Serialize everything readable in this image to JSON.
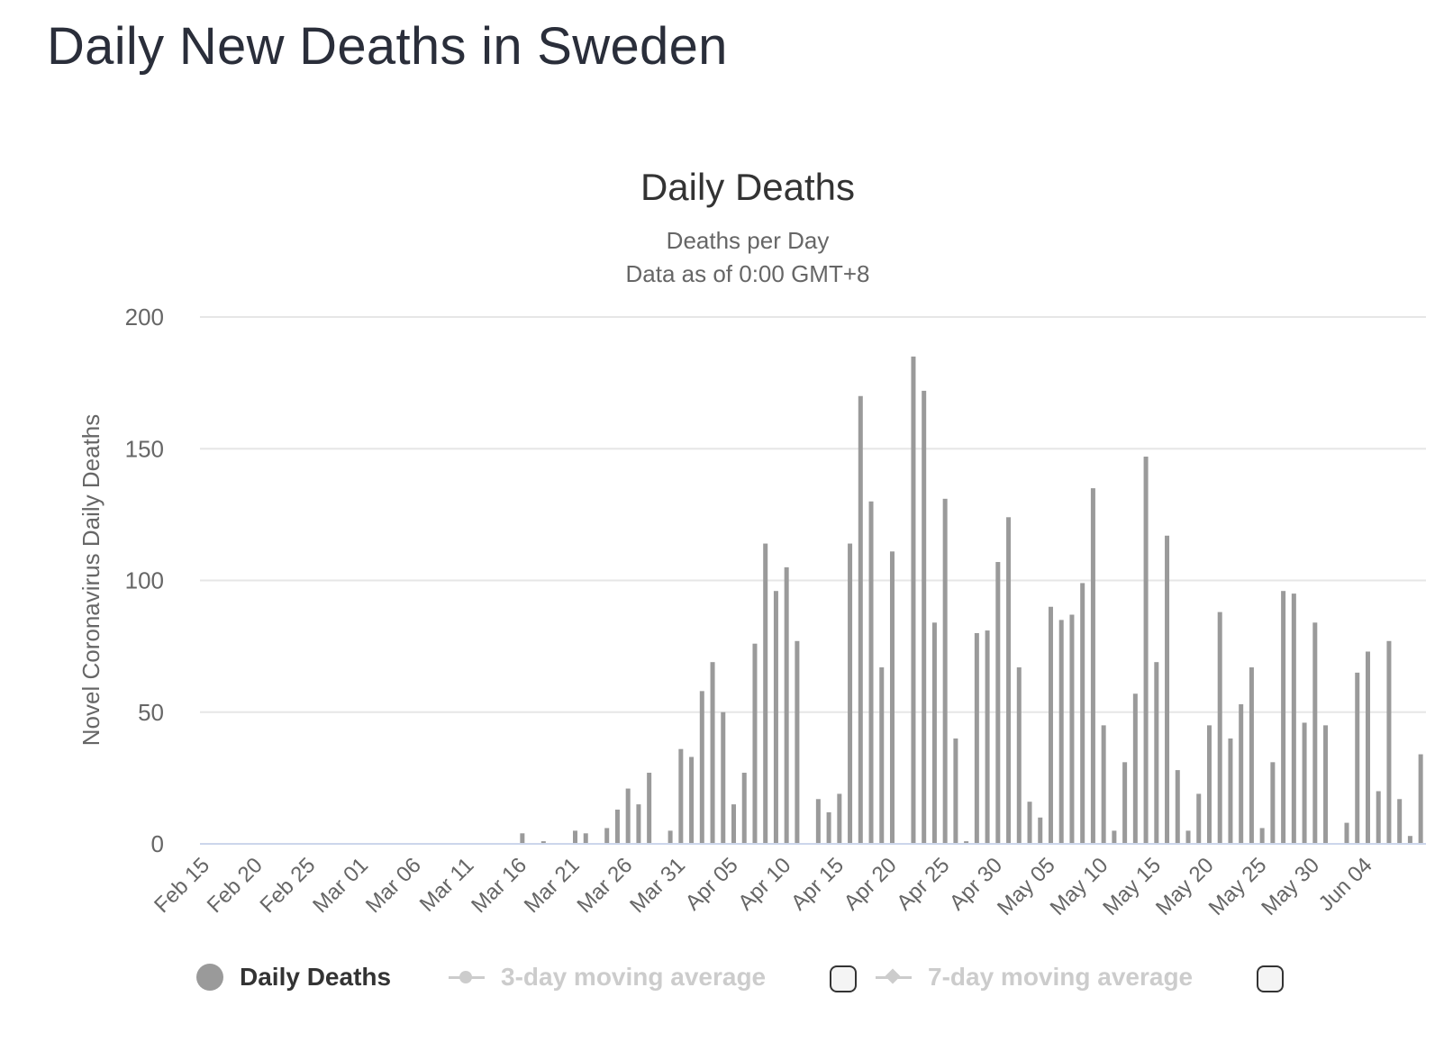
{
  "page": {
    "title": "Daily New Deaths in Sweden"
  },
  "legend": {
    "daily_label": "Daily Deaths",
    "avg3_label": "3-day moving average",
    "avg7_label": "7-day moving average"
  },
  "colors": {
    "bar": "#9a9a9a",
    "grid": "#e6e6e6",
    "baseline": "#ccd6eb",
    "inactive": "#cccccc"
  },
  "chart_data": {
    "type": "bar",
    "title": "Daily Deaths",
    "subtitle_lines": [
      "Deaths per Day",
      "Data as of 0:00 GMT+8"
    ],
    "ylabel": "Novel Coronavirus Daily Deaths",
    "xlabel": "",
    "ylim": [
      0,
      200
    ],
    "yticks": [
      0,
      50,
      100,
      150,
      200
    ],
    "grid": true,
    "legend_position": "bottom",
    "tick_labels": [
      "Feb 15",
      "Feb 20",
      "Feb 25",
      "Mar 01",
      "Mar 06",
      "Mar 11",
      "Mar 16",
      "Mar 21",
      "Mar 26",
      "Mar 31",
      "Apr 05",
      "Apr 10",
      "Apr 15",
      "Apr 20",
      "Apr 25",
      "Apr 30",
      "May 05",
      "May 10",
      "May 15",
      "May 20",
      "May 25",
      "May 30",
      "Jun 04"
    ],
    "start_date": "Feb 15",
    "series": [
      {
        "name": "Daily Deaths",
        "values": [
          0,
          0,
          0,
          0,
          0,
          0,
          0,
          0,
          0,
          0,
          0,
          0,
          0,
          0,
          0,
          0,
          0,
          0,
          0,
          0,
          0,
          0,
          0,
          0,
          0,
          0,
          0,
          0,
          0,
          0,
          4,
          0,
          1,
          0,
          0,
          5,
          4,
          0,
          6,
          13,
          21,
          15,
          27,
          0,
          5,
          36,
          33,
          58,
          69,
          50,
          15,
          27,
          76,
          114,
          96,
          105,
          77,
          0,
          17,
          12,
          19,
          114,
          170,
          130,
          67,
          111,
          0,
          185,
          172,
          84,
          131,
          40,
          1,
          80,
          81,
          107,
          124,
          67,
          16,
          10,
          90,
          85,
          87,
          99,
          135,
          45,
          5,
          31,
          57,
          147,
          69,
          117,
          28,
          5,
          19,
          45,
          88,
          40,
          53,
          67,
          6,
          31,
          96,
          95,
          46,
          84,
          45,
          0,
          8,
          65,
          73,
          20,
          77,
          17,
          3,
          34
        ]
      },
      {
        "name": "3-day moving average",
        "visible": false
      },
      {
        "name": "7-day moving average",
        "visible": false
      }
    ]
  }
}
